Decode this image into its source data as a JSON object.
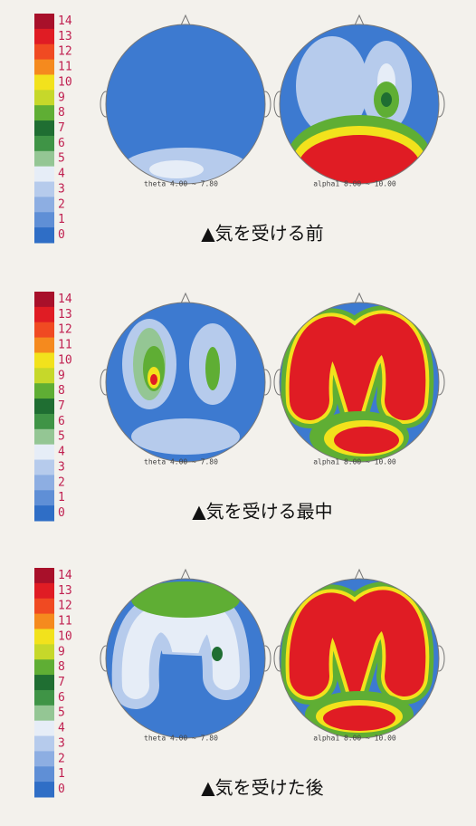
{
  "panels": [
    {
      "scale": [
        "14",
        "13",
        "12",
        "11",
        "10",
        "9",
        "8",
        "7",
        "6",
        "5",
        "4",
        "3",
        "2",
        "1",
        "0"
      ],
      "maps": [
        {
          "label": "theta 4.00 ~ 7.80"
        },
        {
          "label": "alpha1 8.00 ~ 10.00"
        }
      ],
      "caption": "▲気を受ける前"
    },
    {
      "scale": [
        "14",
        "13",
        "12",
        "11",
        "10",
        "9",
        "8",
        "7",
        "6",
        "5",
        "4",
        "3",
        "2",
        "1",
        "0"
      ],
      "maps": [
        {
          "label": "theta 4.00 ~ 7.80"
        },
        {
          "label": "alpha1 8.00 ~ 10.00"
        }
      ],
      "caption": "▲気を受ける最中"
    },
    {
      "scale": [
        "14",
        "13",
        "12",
        "11",
        "10",
        "9",
        "8",
        "7",
        "6",
        "5",
        "4",
        "3",
        "2",
        "1",
        "0"
      ],
      "maps": [
        {
          "label": "theta 4.00 ~ 7.80"
        },
        {
          "label": "alpha1 8.00 ~ 10.00"
        }
      ],
      "caption": "▲気を受けた後"
    }
  ]
}
